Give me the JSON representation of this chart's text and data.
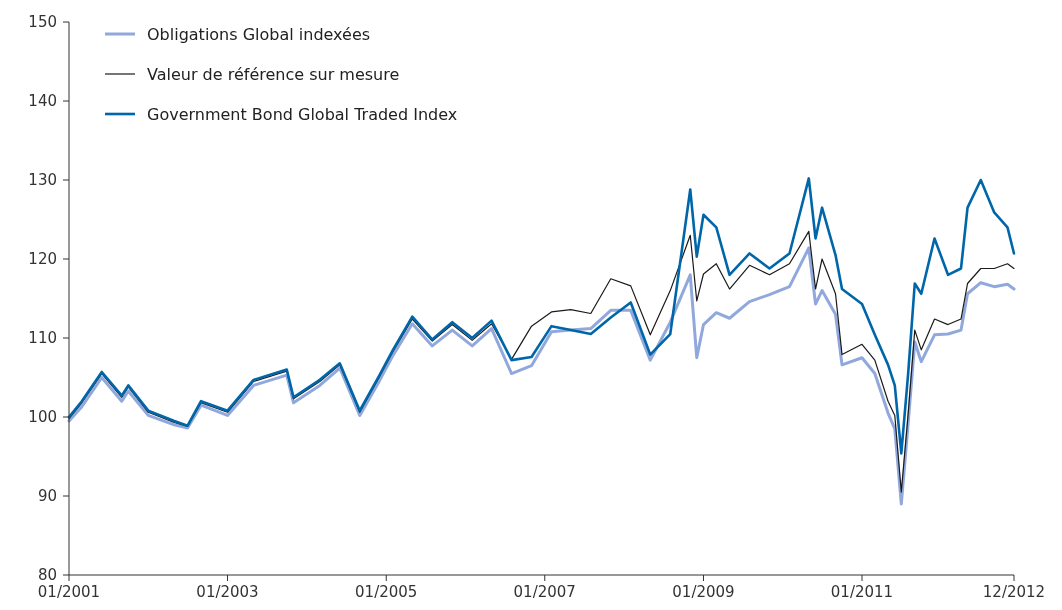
{
  "chart_data": {
    "type": "line",
    "x": [
      "2001-01",
      "2001-03",
      "2001-06",
      "2001-09",
      "2001-10",
      "2002-01",
      "2002-05",
      "2002-07",
      "2002-09",
      "2003-01",
      "2003-05",
      "2003-10",
      "2003-11",
      "2004-03",
      "2004-06",
      "2004-09",
      "2004-12",
      "2005-02",
      "2005-05",
      "2005-08",
      "2005-11",
      "2006-02",
      "2006-05",
      "2006-08",
      "2006-11",
      "2007-02",
      "2007-05",
      "2007-08",
      "2007-11",
      "2008-02",
      "2008-05",
      "2008-08",
      "2008-11",
      "2008-12",
      "2009-01",
      "2009-03",
      "2009-05",
      "2009-08",
      "2009-11",
      "2010-02",
      "2010-05",
      "2010-06",
      "2010-07",
      "2010-09",
      "2010-10",
      "2011-01",
      "2011-03",
      "2011-05",
      "2011-06",
      "2011-07",
      "2011-08",
      "2011-09",
      "2011-10",
      "2011-12",
      "2012-02",
      "2012-04",
      "2012-05",
      "2012-07",
      "2012-09",
      "2012-11",
      "2012-12"
    ],
    "series": [
      {
        "name": "Obligations Global indexées",
        "color": "#91a8dc",
        "values": [
          99.5,
          101.3,
          105,
          102,
          103.3,
          100.2,
          99,
          98.6,
          101.5,
          100.2,
          104,
          105.3,
          101.8,
          104,
          106.2,
          100.2,
          104.6,
          107.8,
          111.8,
          109,
          111,
          109,
          111.2,
          105.5,
          106.5,
          110.8,
          111,
          111.2,
          113.5,
          113.5,
          107.2,
          112,
          118,
          107.5,
          111.7,
          113.2,
          112.5,
          114.6,
          115.5,
          116.5,
          121.4,
          114.3,
          116,
          113,
          106.6,
          107.5,
          105.5,
          100.5,
          98.5,
          89,
          99,
          109.5,
          107,
          110.4,
          110.5,
          111,
          115.6,
          117,
          116.5,
          116.8,
          116.2
        ]
      },
      {
        "name": "Valeur de référence sur mesure",
        "color": "#1a1a1a",
        "values": [
          99.8,
          101.8,
          105.5,
          102.5,
          103.8,
          100.6,
          99.3,
          98.8,
          101.8,
          100.6,
          104.5,
          105.8,
          102.3,
          104.5,
          106.6,
          100.6,
          105.1,
          108.3,
          112.4,
          109.6,
          111.7,
          109.7,
          111.8,
          107.3,
          111.5,
          113.3,
          113.6,
          113.1,
          117.5,
          116.6,
          110.4,
          116,
          123,
          114.7,
          118.1,
          119.4,
          116.2,
          119.2,
          118,
          119.4,
          123.5,
          116.2,
          120,
          115.6,
          107.9,
          109.2,
          107.2,
          102,
          100.2,
          90.5,
          100.2,
          111,
          108.5,
          112.4,
          111.7,
          112.4,
          116.9,
          118.8,
          118.8,
          119.4,
          118.8
        ]
      },
      {
        "name": "Government Bond Global Traded Index",
        "color": "#0066aa",
        "values": [
          100,
          102,
          105.7,
          102.7,
          104,
          100.8,
          99.5,
          98.9,
          102,
          100.8,
          104.7,
          106,
          102.5,
          104.7,
          106.8,
          100.8,
          105.3,
          108.5,
          112.7,
          109.8,
          112,
          110,
          112.2,
          107.2,
          107.6,
          111.5,
          111,
          110.5,
          112.6,
          114.5,
          107.9,
          110.5,
          128.8,
          120.3,
          125.6,
          124,
          118,
          120.7,
          118.8,
          120.7,
          130.2,
          122.6,
          126.5,
          120.5,
          116.2,
          114.3,
          110.4,
          106.6,
          104,
          95.4,
          105.3,
          116.9,
          115.6,
          122.6,
          118,
          118.8,
          126.5,
          130,
          125.9,
          124,
          120.7
        ]
      }
    ],
    "xlim": [
      "2001-01",
      "2012-12"
    ],
    "xticks": [
      {
        "value": "2001-01",
        "label": "01/2001"
      },
      {
        "value": "2003-01",
        "label": "01/2003"
      },
      {
        "value": "2005-01",
        "label": "01/2005"
      },
      {
        "value": "2007-01",
        "label": "01/2007"
      },
      {
        "value": "2009-01",
        "label": "01/2009"
      },
      {
        "value": "2011-01",
        "label": "01/2011"
      },
      {
        "value": "2012-12",
        "label": "12/2012"
      }
    ],
    "ylim": [
      80,
      150
    ],
    "yticks": [
      80,
      90,
      100,
      110,
      120,
      130,
      140,
      150
    ],
    "legend": "top left",
    "line_style": "solid",
    "grid": false
  }
}
